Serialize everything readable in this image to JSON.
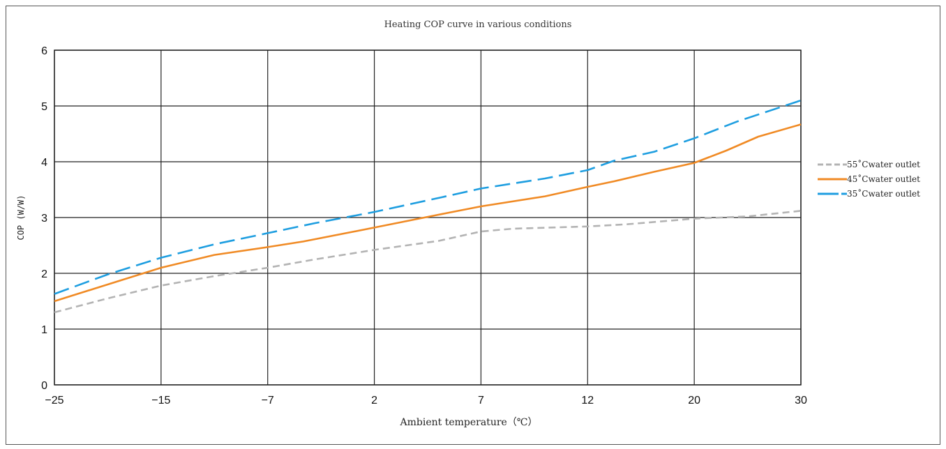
{
  "chart_data": {
    "type": "line",
    "title": "Heating COP curve in various conditions",
    "xlabel": "Ambient temperature（℃）",
    "ylabel": "COP (W/W)",
    "x_ticks": [
      "-25",
      "-15",
      "-7",
      "2",
      "7",
      "12",
      "20",
      "30"
    ],
    "y_ticks": [
      "0",
      "1",
      "2",
      "3",
      "4",
      "5",
      "6"
    ],
    "ylim": [
      0,
      6
    ],
    "grid": true,
    "legend_position": "right",
    "series": [
      {
        "name": "55˚Cwater outlet",
        "color": "#b3b3b3",
        "style": "dashed",
        "points": [
          [
            -25,
            1.3
          ],
          [
            -20,
            1.55
          ],
          [
            -15,
            1.78
          ],
          [
            -11,
            1.95
          ],
          [
            -7,
            2.1
          ],
          [
            -3,
            2.25
          ],
          [
            2,
            2.42
          ],
          [
            5,
            2.58
          ],
          [
            7,
            2.75
          ],
          [
            8.5,
            2.8
          ],
          [
            12,
            2.84
          ],
          [
            15,
            2.88
          ],
          [
            20,
            2.98
          ],
          [
            25,
            3.02
          ],
          [
            30,
            3.12
          ]
        ]
      },
      {
        "name": "45˚Cwater outlet",
        "color": "#f08a24",
        "style": "solid",
        "points": [
          [
            -25,
            1.5
          ],
          [
            -20,
            1.8
          ],
          [
            -15,
            2.1
          ],
          [
            -11,
            2.33
          ],
          [
            -7,
            2.47
          ],
          [
            -4,
            2.57
          ],
          [
            2,
            2.82
          ],
          [
            5,
            3.05
          ],
          [
            7,
            3.2
          ],
          [
            10,
            3.38
          ],
          [
            12,
            3.55
          ],
          [
            14,
            3.65
          ],
          [
            17,
            3.82
          ],
          [
            20,
            3.98
          ],
          [
            23,
            4.2
          ],
          [
            26,
            4.45
          ],
          [
            30,
            4.67
          ]
        ]
      },
      {
        "name": "35˚Cwater outlet",
        "color": "#1e9ee0",
        "style": "longdash",
        "points": [
          [
            -25,
            1.63
          ],
          [
            -20,
            1.98
          ],
          [
            -15,
            2.28
          ],
          [
            -11,
            2.52
          ],
          [
            -7,
            2.72
          ],
          [
            -3,
            2.9
          ],
          [
            2,
            3.1
          ],
          [
            5,
            3.35
          ],
          [
            7,
            3.52
          ],
          [
            10,
            3.7
          ],
          [
            12,
            3.85
          ],
          [
            14,
            4.02
          ],
          [
            17,
            4.18
          ],
          [
            20,
            4.42
          ],
          [
            24,
            4.72
          ],
          [
            30,
            5.1
          ]
        ]
      }
    ]
  }
}
